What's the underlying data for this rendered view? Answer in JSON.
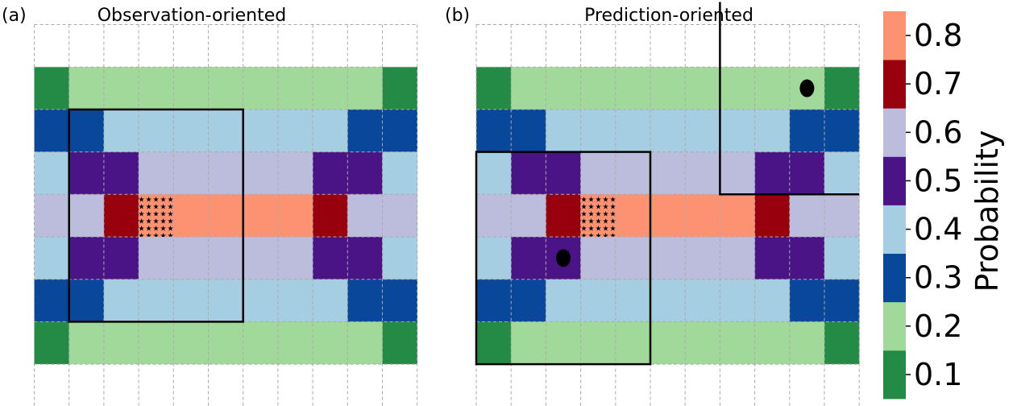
{
  "chart_data": {
    "type": "heatmap",
    "grid_rows": 9,
    "grid_cols": 11,
    "panels": [
      {
        "label": "(a)",
        "title": "Observation-oriented",
        "star_cell": [
          4,
          3
        ],
        "boxes": [
          {
            "row_start": 2,
            "row_end": 6,
            "col_start": 1,
            "col_end": 5
          }
        ],
        "dots": []
      },
      {
        "label": "(b)",
        "title": "Prediction-oriented",
        "star_cell": [
          4,
          3
        ],
        "boxes": [
          {
            "row_start": 3,
            "row_end": 7,
            "col_start": 0,
            "col_end": 4
          }
        ],
        "boundary_lines": [
          {
            "type": "corner",
            "vertical_col": 7,
            "horizontal_row_edge": 4,
            "from_top": true
          }
        ],
        "dots": [
          [
            1,
            9
          ],
          [
            5,
            2
          ]
        ]
      }
    ],
    "matrix": [
      [
        0.0,
        0.0,
        0.0,
        0.0,
        0.0,
        0.0,
        0.0,
        0.0,
        0.0,
        0.0,
        0.0
      ],
      [
        0.1,
        0.2,
        0.2,
        0.2,
        0.2,
        0.2,
        0.2,
        0.2,
        0.2,
        0.2,
        0.1
      ],
      [
        0.3,
        0.3,
        0.4,
        0.4,
        0.4,
        0.4,
        0.4,
        0.4,
        0.4,
        0.3,
        0.3
      ],
      [
        0.4,
        0.5,
        0.5,
        0.6,
        0.6,
        0.6,
        0.6,
        0.6,
        0.5,
        0.5,
        0.4
      ],
      [
        0.6,
        0.6,
        0.7,
        0.8,
        0.8,
        0.8,
        0.8,
        0.8,
        0.7,
        0.6,
        0.6
      ],
      [
        0.4,
        0.5,
        0.5,
        0.6,
        0.6,
        0.6,
        0.6,
        0.6,
        0.5,
        0.5,
        0.4
      ],
      [
        0.3,
        0.3,
        0.4,
        0.4,
        0.4,
        0.4,
        0.4,
        0.4,
        0.4,
        0.3,
        0.3
      ],
      [
        0.1,
        0.2,
        0.2,
        0.2,
        0.2,
        0.2,
        0.2,
        0.2,
        0.2,
        0.2,
        0.1
      ],
      [
        0.0,
        0.0,
        0.0,
        0.0,
        0.0,
        0.0,
        0.0,
        0.0,
        0.0,
        0.0,
        0.0
      ]
    ],
    "colorbar": {
      "label": "Probability",
      "ticks": [
        "0.1",
        "0.2",
        "0.3",
        "0.4",
        "0.5",
        "0.6",
        "0.7",
        "0.8"
      ],
      "colors": [
        "#238b45",
        "#a1d99b",
        "#08479a",
        "#a6cee3",
        "#4a1486",
        "#bcbddc",
        "#99000d",
        "#fc9272"
      ]
    },
    "empty_color": "#ffffff",
    "grid_line_color": "#aaaaaa"
  }
}
